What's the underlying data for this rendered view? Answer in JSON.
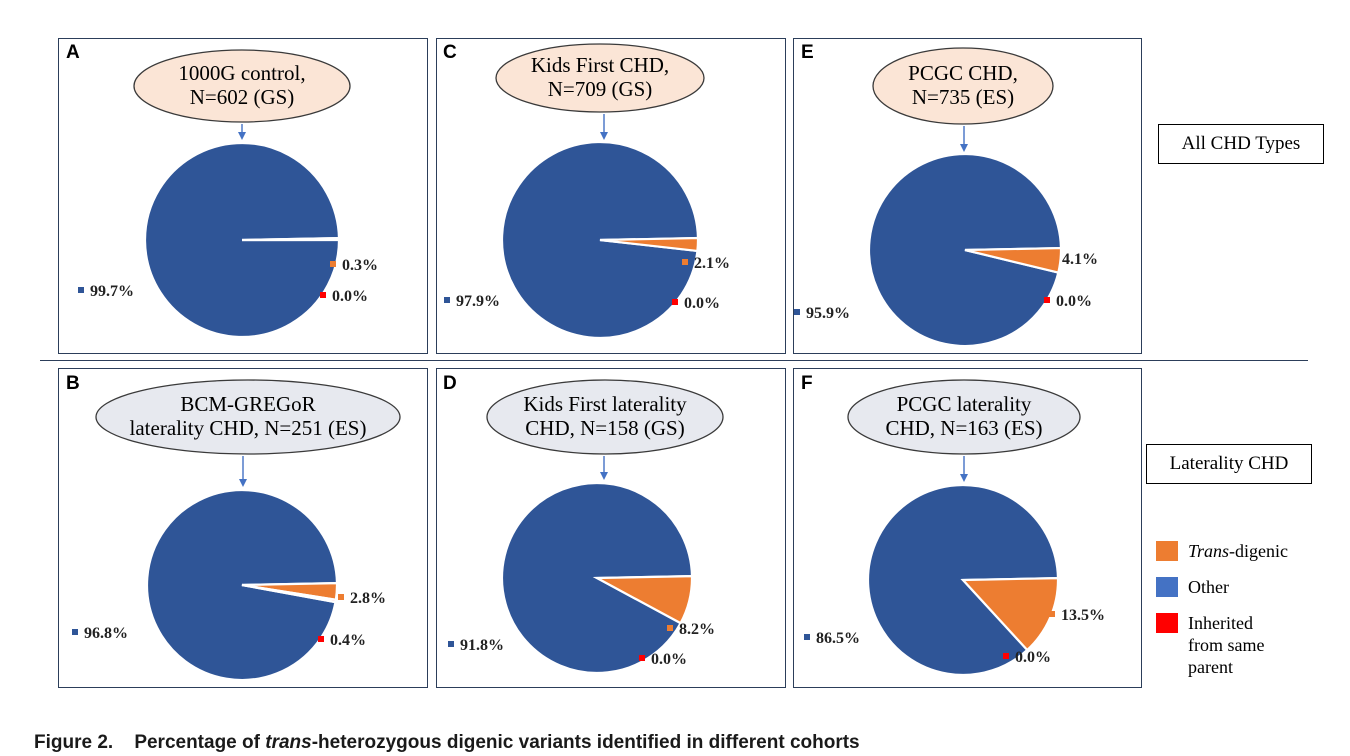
{
  "figure": {
    "caption_label": "Figure 2.",
    "caption_text_pre": "Percentage of ",
    "caption_text_italic": "trans",
    "caption_text_post": "-heterozygous digenic variants identified in different cohorts",
    "row_labels": [
      "All CHD Types",
      "Laterality CHD"
    ]
  },
  "colors": {
    "other": "#2f5597",
    "trans_digenic": "#ed7d31",
    "inherited_same_parent": "#ff0000",
    "legend_other": "#4472c4",
    "oval_control": "#fbe5d6",
    "oval_laterality": "#e7e9ef",
    "arrow": "#4472c4"
  },
  "legend": [
    {
      "label_italic": "Trans",
      "label": "-digenic",
      "color_key": "trans_digenic"
    },
    {
      "label_italic": "",
      "label": "Other",
      "color_key": "legend_other"
    },
    {
      "label_italic": "",
      "label": "Inherited from same parent",
      "color_key": "inherited_same_parent"
    }
  ],
  "chart_data": [
    {
      "panel": "A",
      "type": "pie",
      "title_lines": [
        "1000G control,",
        "N=602 (GS)"
      ],
      "categories": [
        "Other",
        "Trans-digenic",
        "Inherited from same parent"
      ],
      "values": [
        99.7,
        0.3,
        0.0
      ],
      "labels": [
        "99.7%",
        "0.3%",
        "0.0%"
      ],
      "oval": "control"
    },
    {
      "panel": "C",
      "type": "pie",
      "title_lines": [
        "Kids First CHD,",
        "N=709 (GS)"
      ],
      "categories": [
        "Other",
        "Trans-digenic",
        "Inherited from same parent"
      ],
      "values": [
        97.9,
        2.1,
        0.0
      ],
      "labels": [
        "97.9%",
        "2.1%",
        "0.0%"
      ],
      "oval": "control"
    },
    {
      "panel": "E",
      "type": "pie",
      "title_lines": [
        "PCGC CHD,",
        "N=735 (ES)"
      ],
      "categories": [
        "Other",
        "Trans-digenic",
        "Inherited from same parent"
      ],
      "values": [
        95.9,
        4.1,
        0.0
      ],
      "labels": [
        "95.9%",
        "4.1%",
        "0.0%"
      ],
      "oval": "control"
    },
    {
      "panel": "B",
      "type": "pie",
      "title_lines": [
        "BCM-GREGoR",
        "laterality CHD, N=251 (ES)"
      ],
      "categories": [
        "Other",
        "Trans-digenic",
        "Inherited from same parent"
      ],
      "values": [
        96.8,
        2.8,
        0.4
      ],
      "labels": [
        "96.8%",
        "2.8%",
        "0.4%"
      ],
      "oval": "laterality"
    },
    {
      "panel": "D",
      "type": "pie",
      "title_lines": [
        "Kids First laterality",
        "CHD, N=158 (GS)"
      ],
      "categories": [
        "Other",
        "Trans-digenic",
        "Inherited from same parent"
      ],
      "values": [
        91.8,
        8.2,
        0.0
      ],
      "labels": [
        "91.8%",
        "8.2%",
        "0.0%"
      ],
      "oval": "laterality"
    },
    {
      "panel": "F",
      "type": "pie",
      "title_lines": [
        "PCGC laterality",
        "CHD, N=163 (ES)"
      ],
      "categories": [
        "Other",
        "Trans-digenic",
        "Inherited from same parent"
      ],
      "values": [
        86.5,
        13.5,
        0.0
      ],
      "labels": [
        "86.5%",
        "13.5%",
        "0.0%"
      ],
      "oval": "laterality"
    }
  ]
}
